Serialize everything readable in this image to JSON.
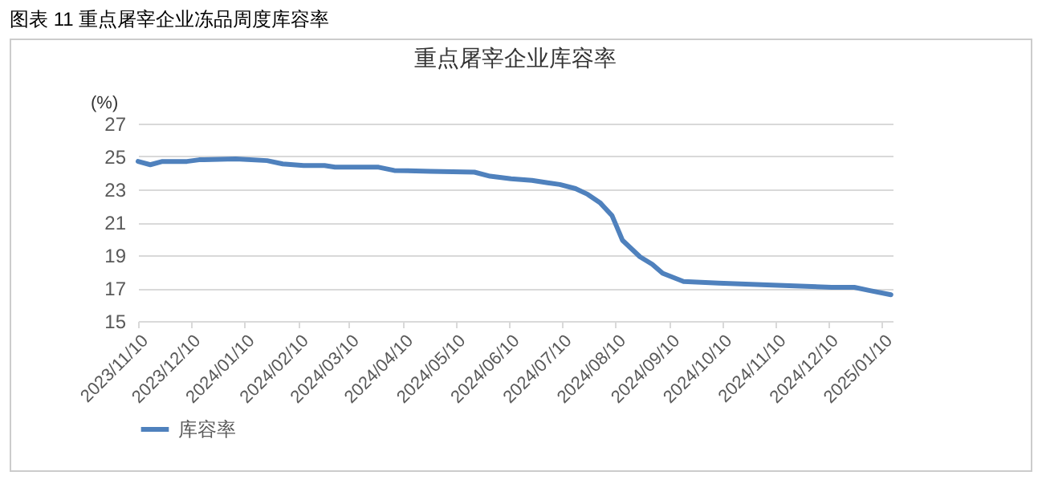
{
  "chart_data": {
    "type": "line",
    "title": "重点屠宰企业库容率",
    "ylabel": "(%)",
    "annotations": [
      "图表 11  重点屠宰企业冻品周度库容率"
    ],
    "x": [
      "2023-11-10",
      "2023-11-17",
      "2023-11-24",
      "2023-12-08",
      "2023-12-15",
      "2024-01-05",
      "2024-01-23",
      "2024-02-01",
      "2024-02-13",
      "2024-02-25",
      "2024-03-02",
      "2024-03-27",
      "2024-04-05",
      "2024-04-26",
      "2024-05-21",
      "2024-05-30",
      "2024-06-11",
      "2024-06-23",
      "2024-07-02",
      "2024-07-09",
      "2024-07-18",
      "2024-07-25",
      "2024-08-01",
      "2024-08-08",
      "2024-08-14",
      "2024-08-24",
      "2024-08-31",
      "2024-09-06",
      "2024-09-18",
      "2024-10-08",
      "2024-11-05",
      "2024-12-12",
      "2024-12-25",
      "2025-01-03",
      "2025-01-15"
    ],
    "series": [
      {
        "name": "库容率",
        "color": "#4f81bd",
        "values": [
          24.7,
          24.5,
          24.7,
          24.7,
          24.8,
          24.85,
          24.75,
          24.55,
          24.45,
          24.45,
          24.35,
          24.35,
          24.15,
          24.1,
          24.05,
          23.8,
          23.65,
          23.55,
          23.4,
          23.3,
          23.05,
          22.7,
          22.2,
          21.4,
          19.9,
          18.9,
          18.45,
          17.9,
          17.4,
          17.3,
          17.2,
          17.05,
          17.05,
          16.85,
          16.6
        ]
      }
    ],
    "xlim": [
      "2023-11-10",
      "2025-01-16"
    ],
    "xticks": [
      {
        "value": "2023-11-10",
        "label": "2023/11/10"
      },
      {
        "value": "2023-12-10",
        "label": "2023/12/10"
      },
      {
        "value": "2024-01-10",
        "label": "2024/01/10"
      },
      {
        "value": "2024-02-10",
        "label": "2024/02/10"
      },
      {
        "value": "2024-03-10",
        "label": "2024/03/10"
      },
      {
        "value": "2024-04-10",
        "label": "2024/04/10"
      },
      {
        "value": "2024-05-10",
        "label": "2024/05/10"
      },
      {
        "value": "2024-06-10",
        "label": "2024/06/10"
      },
      {
        "value": "2024-07-10",
        "label": "2024/07/10"
      },
      {
        "value": "2024-08-10",
        "label": "2024/08/10"
      },
      {
        "value": "2024-09-10",
        "label": "2024/09/10"
      },
      {
        "value": "2024-10-10",
        "label": "2024/10/10"
      },
      {
        "value": "2024-11-10",
        "label": "2024/11/10"
      },
      {
        "value": "2024-12-10",
        "label": "2024/12/10"
      },
      {
        "value": "2025-01-10",
        "label": "2025/01/10"
      }
    ],
    "ylim": [
      15,
      27
    ],
    "yticks": [
      15,
      17,
      19,
      21,
      23,
      25,
      27
    ],
    "grid": "y",
    "legend": "bottom",
    "marker": "none",
    "line_style": "solid"
  }
}
